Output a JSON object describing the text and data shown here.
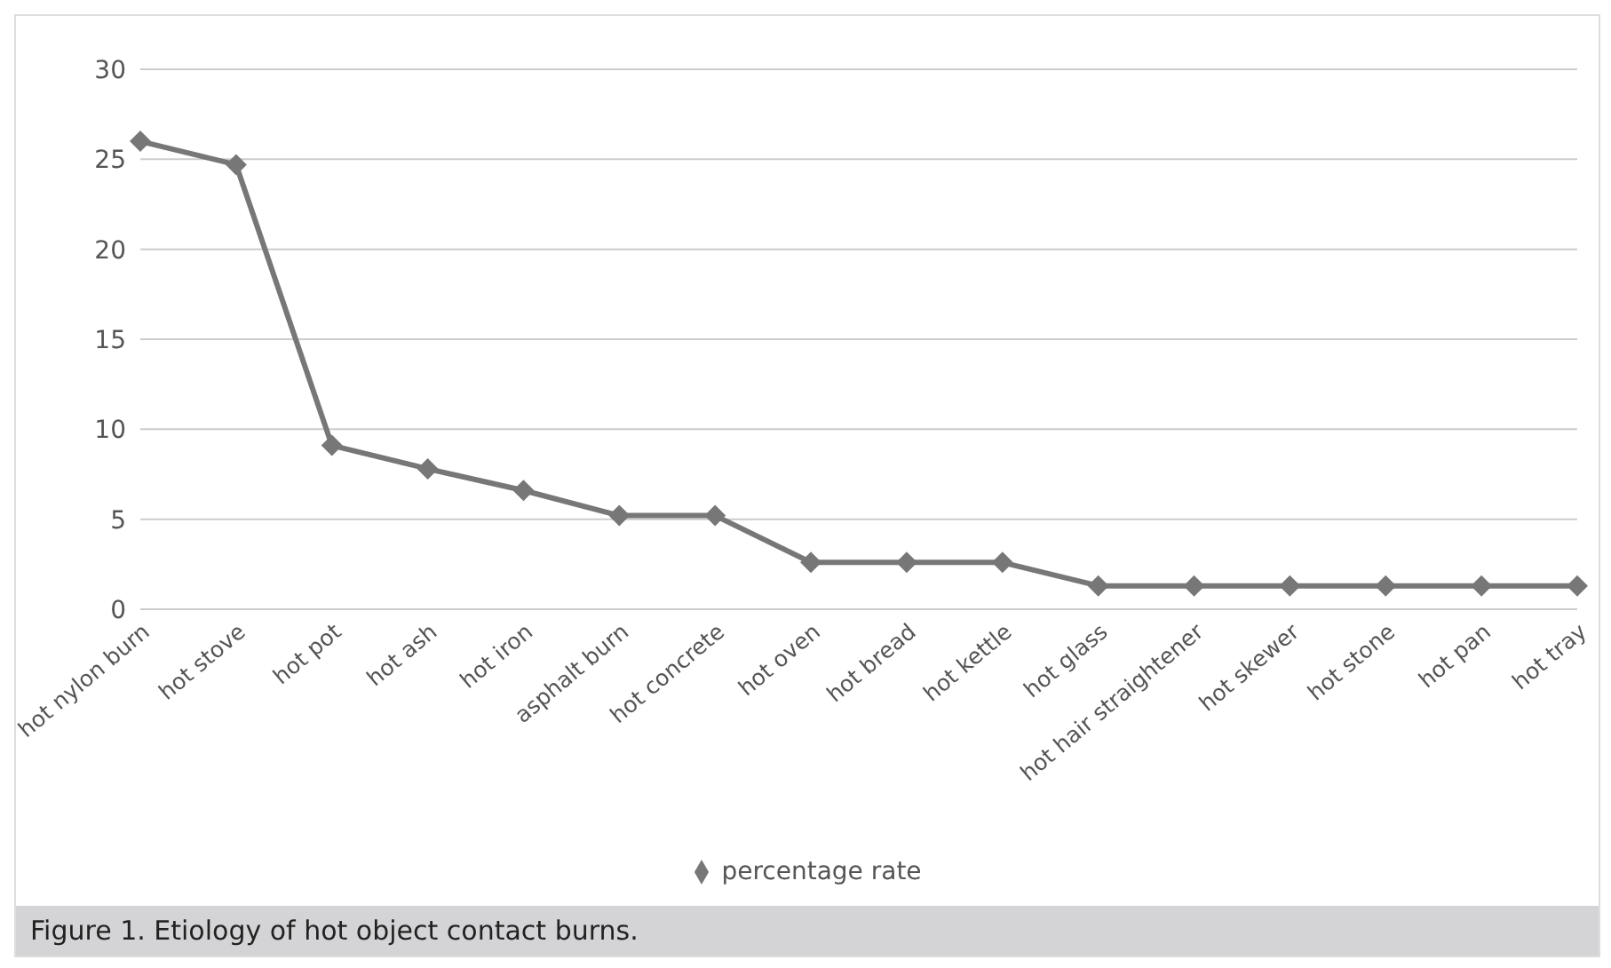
{
  "chart_data": {
    "type": "line",
    "categories": [
      "hot nylon burn",
      "hot stove",
      "hot pot",
      "hot ash",
      "hot iron",
      "asphalt burn",
      "hot concrete",
      "hot oven",
      "hot bread",
      "hot kettle",
      "hot glass",
      "hot hair straightener",
      "hot skewer",
      "hot stone",
      "hot pan",
      "hot tray"
    ],
    "series": [
      {
        "name": "percentage rate",
        "color": "#777777",
        "values": [
          26,
          24.7,
          9.1,
          7.8,
          6.6,
          5.2,
          5.2,
          2.6,
          2.6,
          2.6,
          1.3,
          1.3,
          1.3,
          1.3,
          1.3,
          1.3
        ]
      }
    ],
    "ylim": [
      0,
      30
    ],
    "yticks": [
      0,
      5,
      10,
      15,
      20,
      25,
      30
    ],
    "grid": "y",
    "legend": "bottom",
    "marker": "diamond",
    "line_style": "solid",
    "annotations": [
      "Figure 1. Etiology of hot object contact burns."
    ]
  }
}
